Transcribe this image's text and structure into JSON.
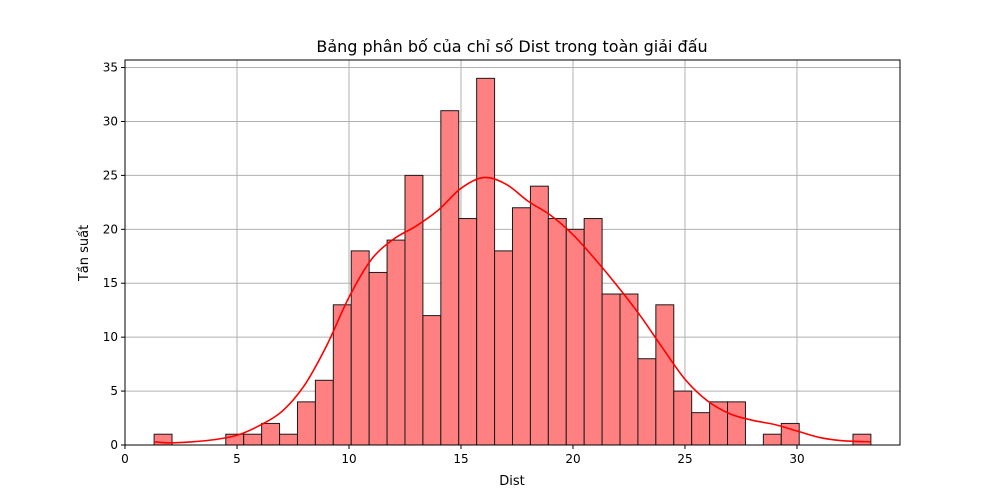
{
  "chart_data": {
    "type": "bar",
    "subtype": "histogram-with-kde",
    "title": "Bảng phân bố của chỉ số Dist trong toàn giải đấu",
    "xlabel": "Dist",
    "ylabel": "Tần suất",
    "xlim": [
      0,
      34.6
    ],
    "ylim": [
      0,
      35.7
    ],
    "xticks": [
      0,
      5,
      10,
      15,
      20,
      25,
      30
    ],
    "yticks": [
      0,
      5,
      10,
      15,
      20,
      25,
      30,
      35
    ],
    "grid": true,
    "bin_edges": [
      1.3,
      2.1,
      2.9,
      3.7,
      4.5,
      5.3,
      6.1,
      6.9,
      7.7,
      8.5,
      9.3,
      10.1,
      10.9,
      11.7,
      12.5,
      13.3,
      14.1,
      14.9,
      15.7,
      16.5,
      17.3,
      18.1,
      18.9,
      19.7,
      20.5,
      21.3,
      22.1,
      22.9,
      23.7,
      24.5,
      25.3,
      26.1,
      26.9,
      27.7,
      28.5,
      29.3,
      30.1,
      30.9,
      31.7,
      32.5,
      33.3
    ],
    "counts": [
      1,
      0,
      0,
      0,
      1,
      1,
      2,
      1,
      4,
      6,
      13,
      18,
      16,
      19,
      25,
      12,
      31,
      21,
      34,
      18,
      22,
      24,
      21,
      20,
      21,
      14,
      14,
      8,
      13,
      5,
      3,
      4,
      4,
      0,
      1,
      2,
      0,
      0,
      0,
      1
    ],
    "kde": {
      "x": [
        1.3,
        2,
        3,
        4,
        5,
        6,
        7,
        8,
        9,
        10,
        11,
        12,
        13,
        14,
        15,
        16,
        17,
        18,
        19,
        20,
        21,
        22,
        23,
        24,
        25,
        26,
        27,
        28,
        29,
        30,
        31,
        32,
        33.3
      ],
      "y": [
        0.3,
        0.2,
        0.3,
        0.5,
        0.9,
        1.8,
        3.1,
        5.5,
        9.2,
        13.7,
        17.2,
        19.1,
        20.3,
        21.8,
        23.8,
        24.8,
        24.2,
        22.6,
        21.3,
        19.5,
        17.2,
        14.7,
        12.0,
        9.0,
        6.1,
        4.1,
        2.9,
        2.3,
        1.9,
        1.3,
        0.7,
        0.4,
        0.3
      ]
    },
    "colors": {
      "bar_fill": "#ff8080",
      "bar_edge": "#1a1a1a",
      "kde_line": "#ff0000",
      "grid": "#b0b0b0"
    }
  }
}
